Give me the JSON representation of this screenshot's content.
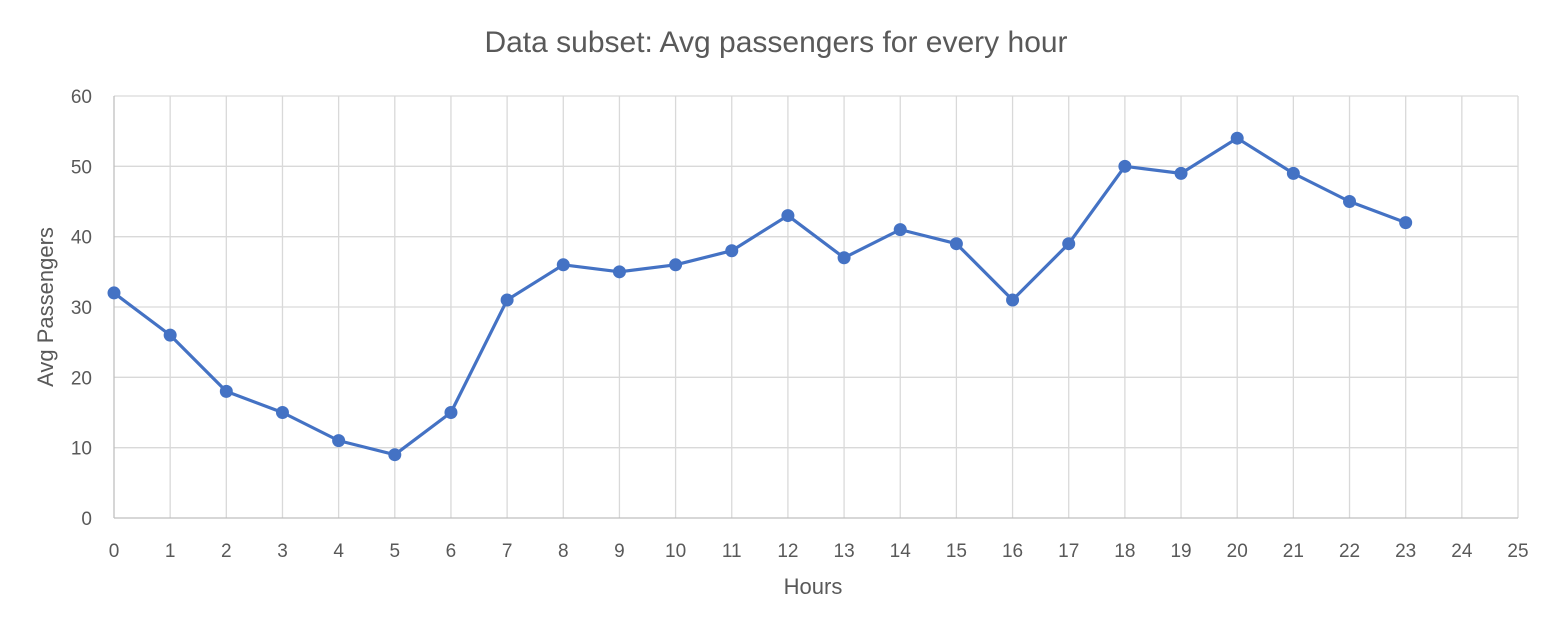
{
  "chart_data": {
    "type": "line",
    "title": "Data subset: Avg passengers for every hour",
    "xlabel": "Hours",
    "ylabel": "Avg Passengers",
    "xlim": [
      0,
      25
    ],
    "ylim": [
      0,
      60
    ],
    "x_ticks": [
      0,
      1,
      2,
      3,
      4,
      5,
      6,
      7,
      8,
      9,
      10,
      11,
      12,
      13,
      14,
      15,
      16,
      17,
      18,
      19,
      20,
      21,
      22,
      23,
      24,
      25
    ],
    "y_ticks": [
      0,
      10,
      20,
      30,
      40,
      50,
      60
    ],
    "grid": true,
    "legend": "none",
    "series": [
      {
        "color": "#4472c4",
        "marker": "circle",
        "x": [
          0,
          1,
          2,
          3,
          4,
          5,
          6,
          7,
          8,
          9,
          10,
          11,
          12,
          13,
          14,
          15,
          16,
          17,
          18,
          19,
          20,
          21,
          22,
          23
        ],
        "values": [
          32,
          26,
          18,
          15,
          11,
          9,
          15,
          31,
          36,
          35,
          36,
          38,
          43,
          37,
          41,
          39,
          31,
          39,
          50,
          49,
          54,
          49,
          45,
          42
        ]
      }
    ]
  }
}
